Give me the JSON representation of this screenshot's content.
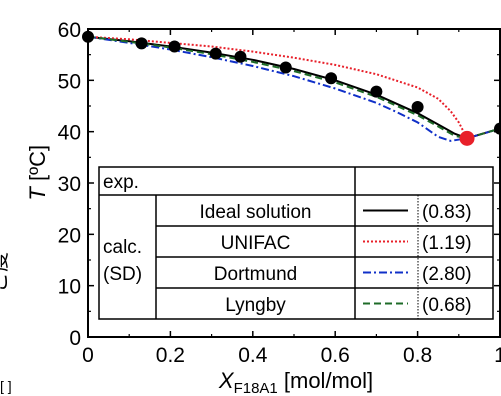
{
  "chart_data": {
    "type": "line",
    "xlabel": "X",
    "xlabel_sub": "F18A1",
    "xlabel_unit": " [mol/mol]",
    "ylabel": "T",
    "ylabel_unit": " [ºC]",
    "xlim": [
      0,
      1
    ],
    "ylim": [
      0,
      60
    ],
    "xticks": [
      0,
      0.2,
      0.4,
      0.6,
      0.8,
      1
    ],
    "xtick_labels": [
      "0",
      "0.2",
      "0.4",
      "0.6",
      "0.8",
      "1"
    ],
    "yticks": [
      0,
      10,
      20,
      30,
      40,
      50,
      60
    ],
    "ytick_labels": [
      "0",
      "10",
      "20",
      "30",
      "40",
      "50",
      "60"
    ],
    "edge_label": "ご度",
    "edge_label_bottom": "[ ]",
    "experimental": {
      "x": [
        0.0,
        0.13,
        0.21,
        0.31,
        0.37,
        0.48,
        0.59,
        0.7,
        0.8,
        1.0
      ],
      "y": [
        58.5,
        57.2,
        56.6,
        55.2,
        54.6,
        52.5,
        50.4,
        47.8,
        44.8,
        40.6
      ],
      "color": "#000000",
      "eutectic": {
        "x": 0.92,
        "y": 38.7,
        "color": "#e8202a"
      }
    },
    "series": [
      {
        "name": "Ideal solution",
        "color": "#000000",
        "dash": "solid",
        "x": [
          0,
          0.1,
          0.2,
          0.3,
          0.4,
          0.5,
          0.6,
          0.7,
          0.8,
          0.85,
          0.89,
          0.92,
          1.0
        ],
        "y": [
          58.5,
          57.6,
          56.6,
          55.4,
          54.0,
          52.2,
          50.0,
          47.2,
          43.6,
          41.4,
          39.6,
          38.7,
          40.6
        ]
      },
      {
        "name": "UNIFAC",
        "color": "#e8202a",
        "dash": "dotted",
        "x": [
          0,
          0.1,
          0.2,
          0.3,
          0.4,
          0.5,
          0.6,
          0.7,
          0.8,
          0.85,
          0.88,
          0.9,
          0.92,
          1.0
        ],
        "y": [
          58.5,
          58.0,
          57.3,
          56.6,
          55.6,
          54.4,
          53.0,
          51.2,
          48.6,
          46.4,
          44.0,
          41.8,
          38.7,
          40.6
        ]
      },
      {
        "name": "Dortmund",
        "color": "#1030c8",
        "dash": "dashdot",
        "x": [
          0,
          0.1,
          0.2,
          0.3,
          0.4,
          0.5,
          0.6,
          0.7,
          0.75,
          0.8,
          0.85,
          0.88,
          0.92,
          1.0
        ],
        "y": [
          58.5,
          57.3,
          56.0,
          54.5,
          52.8,
          50.8,
          48.4,
          45.6,
          43.8,
          41.8,
          39.0,
          38.2,
          38.7,
          40.6
        ]
      },
      {
        "name": "Lyngby",
        "color": "#1e6b28",
        "dash": "dashed",
        "x": [
          0,
          0.1,
          0.2,
          0.3,
          0.4,
          0.5,
          0.6,
          0.7,
          0.8,
          0.85,
          0.89,
          0.92,
          1.0
        ],
        "y": [
          58.5,
          57.5,
          56.4,
          55.1,
          53.6,
          51.8,
          49.6,
          46.8,
          43.2,
          41.0,
          39.2,
          38.7,
          40.6
        ]
      }
    ],
    "legend": {
      "placement": "bottom-right",
      "exp_label": "exp.",
      "calc_label": "calc.",
      "sd_label": "(SD)",
      "rows": [
        {
          "name": "Ideal solution",
          "sd": "(0.83)"
        },
        {
          "name": "UNIFAC",
          "sd": "(1.19)"
        },
        {
          "name": "Dortmund",
          "sd": "(2.80)"
        },
        {
          "name": "Lyngby",
          "sd": "(0.68)"
        }
      ]
    }
  }
}
